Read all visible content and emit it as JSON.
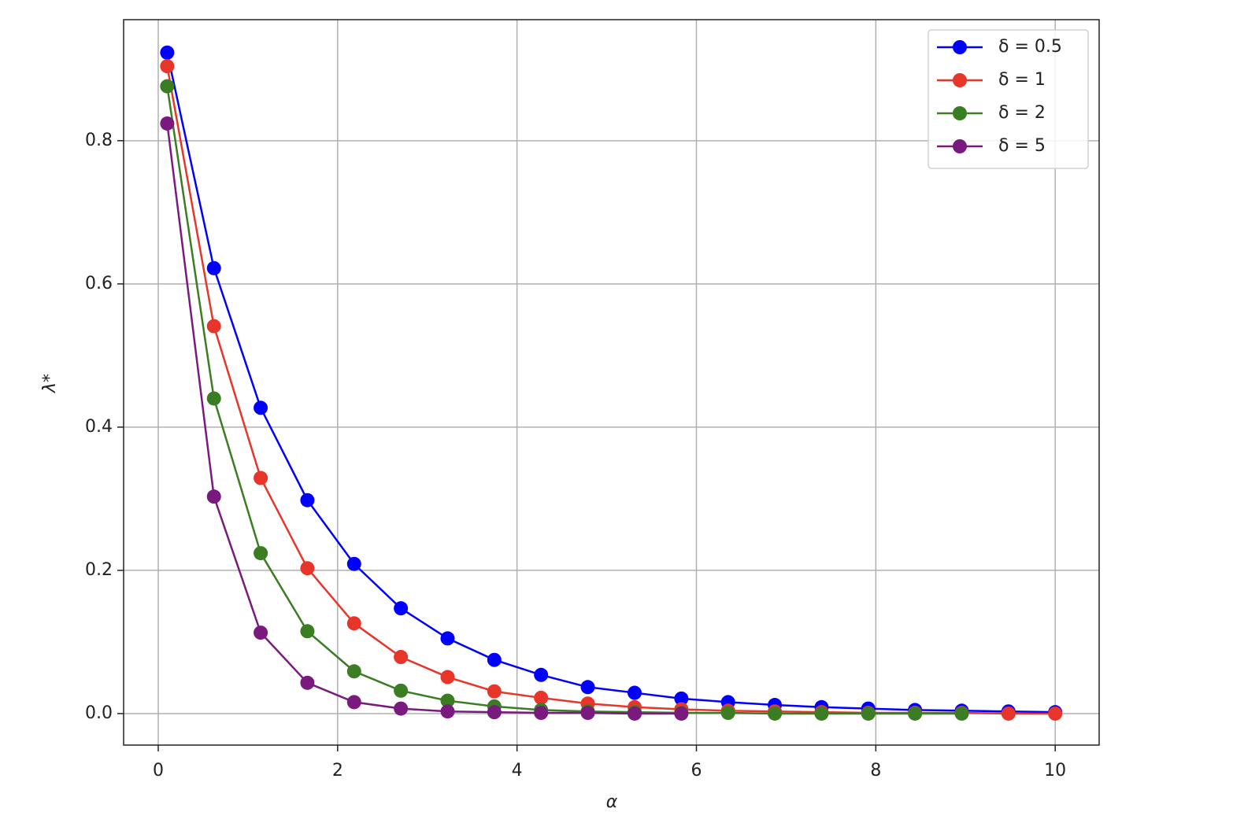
{
  "chart_data": {
    "type": "line",
    "x_label": "α",
    "y_label": "λ*",
    "x": [
      0.1,
      0.621,
      1.142,
      1.663,
      2.184,
      2.705,
      3.226,
      3.747,
      4.268,
      4.789,
      5.311,
      5.832,
      6.353,
      6.874,
      7.395,
      7.916,
      8.437,
      8.958,
      9.479,
      10.0
    ],
    "series": [
      {
        "name": "δ = 0.5",
        "color": "#0000ff",
        "values": [
          0.923,
          0.622,
          0.427,
          0.298,
          0.209,
          0.147,
          0.105,
          0.075,
          0.054,
          0.037,
          0.029,
          0.021,
          0.016,
          0.012,
          0.009,
          0.007,
          0.005,
          0.004,
          0.003,
          0.002
        ]
      },
      {
        "name": "δ = 1",
        "color": "#e8352a",
        "values": [
          0.904,
          0.541,
          0.329,
          0.203,
          0.126,
          0.079,
          0.051,
          0.031,
          0.022,
          0.014,
          0.009,
          0.006,
          0.004,
          0.003,
          0.002,
          0.001,
          0.001,
          0.001,
          0,
          0
        ]
      },
      {
        "name": "δ = 2",
        "color": "#3a7d22",
        "values": [
          0.876,
          0.44,
          0.224,
          0.115,
          0.059,
          0.032,
          0.018,
          0.01,
          0.005,
          0.003,
          0.002,
          0.001,
          0.001,
          0,
          0,
          0,
          0,
          0,
          null,
          null
        ]
      },
      {
        "name": "δ = 5",
        "color": "#7a1a7e",
        "values": [
          0.824,
          0.303,
          0.113,
          0.043,
          0.016,
          0.007,
          0.003,
          0.002,
          0.001,
          0.001,
          0,
          0,
          null,
          null,
          null,
          null,
          null,
          null,
          null,
          null
        ]
      }
    ],
    "xlim": [
      -0.386,
      10.49
    ],
    "ylim": [
      -0.044,
      0.969
    ],
    "xticks": [
      0,
      2,
      4,
      6,
      8,
      10
    ],
    "yticks": [
      {
        "value": 0,
        "label": "0.0"
      },
      0.2,
      0.4,
      0.6,
      0.8
    ],
    "grid": true,
    "legend": "upper right"
  }
}
